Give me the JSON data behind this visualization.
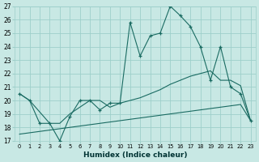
{
  "xlabel": "Humidex (Indice chaleur)",
  "bg_color": "#c8e8e4",
  "grid_color": "#9ecfca",
  "line_color": "#1a6b62",
  "xlim_min": -0.5,
  "xlim_max": 23.5,
  "ylim_min": 17,
  "ylim_max": 27,
  "xticks": [
    0,
    1,
    2,
    3,
    4,
    5,
    6,
    7,
    8,
    9,
    10,
    11,
    12,
    13,
    14,
    15,
    16,
    17,
    18,
    19,
    20,
    21,
    22,
    23
  ],
  "yticks": [
    17,
    18,
    19,
    20,
    21,
    22,
    23,
    24,
    25,
    26,
    27
  ],
  "line1_x": [
    0,
    1,
    2,
    3,
    4,
    5,
    6,
    7,
    8,
    9,
    10,
    11,
    12,
    13,
    14,
    15,
    16,
    17,
    18,
    19,
    20,
    21,
    22,
    23
  ],
  "line1_y": [
    20.5,
    20.0,
    18.3,
    18.3,
    17.0,
    18.8,
    20.0,
    20.0,
    19.3,
    19.8,
    19.8,
    25.8,
    23.3,
    24.8,
    25.0,
    27.0,
    26.3,
    25.5,
    24.0,
    21.5,
    24.0,
    21.0,
    20.5,
    18.5
  ],
  "line2_x": [
    0,
    1,
    3,
    4,
    5,
    6,
    7,
    8,
    9,
    10,
    11,
    12,
    13,
    14,
    15,
    16,
    17,
    18,
    19,
    20,
    21,
    22,
    23
  ],
  "line2_y": [
    20.5,
    20.0,
    18.3,
    18.3,
    19.0,
    19.5,
    20.0,
    20.0,
    19.5,
    19.8,
    20.0,
    20.2,
    20.5,
    20.8,
    21.2,
    21.5,
    21.8,
    22.0,
    22.2,
    21.5,
    21.5,
    21.1,
    18.5
  ],
  "line3_x": [
    0,
    1,
    2,
    3,
    4,
    5,
    6,
    7,
    8,
    9,
    10,
    11,
    12,
    13,
    14,
    15,
    16,
    17,
    18,
    19,
    20,
    21,
    22,
    23
  ],
  "line3_y": [
    17.5,
    17.6,
    17.7,
    17.8,
    17.9,
    18.0,
    18.1,
    18.2,
    18.3,
    18.4,
    18.5,
    18.6,
    18.7,
    18.8,
    18.9,
    19.0,
    19.1,
    19.2,
    19.3,
    19.4,
    19.5,
    19.6,
    19.7,
    18.5
  ]
}
